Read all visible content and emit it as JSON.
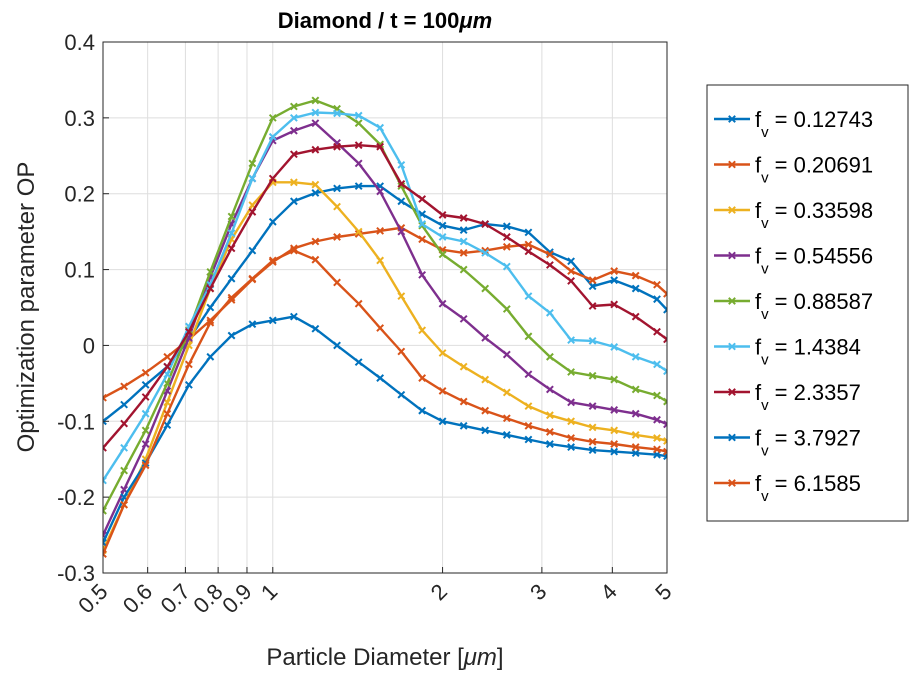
{
  "chart_data": {
    "type": "line",
    "title": "Diamond / t = 100",
    "title_unit": "μm",
    "xlabel": "Particle Diameter  [",
    "xlabel_unit": "μm",
    "xlabel_close": "]",
    "ylabel": "Optimization parameter OP",
    "xscale": "log",
    "xlim": [
      0.5,
      5
    ],
    "ylim": [
      -0.3,
      0.4
    ],
    "xticks": [
      0.5,
      0.6,
      0.7,
      0.8,
      0.9,
      1,
      2,
      3,
      4,
      5
    ],
    "xticklabels": [
      "0.5",
      "0.6",
      "0.7",
      "0.8",
      "0.9",
      "1",
      "2",
      "3",
      "4",
      "5"
    ],
    "yticks": [
      -0.3,
      -0.2,
      -0.1,
      0,
      0.1,
      0.2,
      0.3,
      0.4
    ],
    "yticklabels": [
      "-0.3",
      "-0.2",
      "-0.1",
      "0",
      "0.1",
      "0.2",
      "0.3",
      "0.4"
    ],
    "grid": true,
    "legend_position": "outside-right",
    "marker": "x",
    "x": [
      0.5,
      0.545,
      0.595,
      0.65,
      0.71,
      0.775,
      0.845,
      0.92,
      1.0,
      1.09,
      1.19,
      1.3,
      1.42,
      1.55,
      1.69,
      1.84,
      2.0,
      2.18,
      2.38,
      2.6,
      2.84,
      3.1,
      3.38,
      3.69,
      4.03,
      4.4,
      4.8,
      5.0
    ],
    "series": [
      {
        "name": "0.12743",
        "color": "#0072BD",
        "values": [
          -0.1,
          -0.078,
          -0.052,
          -0.028,
          0.008,
          0.05,
          0.088,
          0.125,
          0.163,
          0.19,
          0.201,
          0.207,
          0.21,
          0.21,
          0.19,
          0.173,
          0.158,
          0.152,
          0.16,
          0.157,
          0.149,
          0.123,
          0.111,
          0.078,
          0.086,
          0.075,
          0.061,
          0.047
        ]
      },
      {
        "name": "0.20691",
        "color": "#D95319",
        "values": [
          -0.069,
          -0.054,
          -0.036,
          -0.015,
          0.008,
          0.033,
          0.06,
          0.087,
          0.11,
          0.128,
          0.137,
          0.143,
          0.147,
          0.151,
          0.155,
          0.14,
          0.126,
          0.122,
          0.125,
          0.13,
          0.133,
          0.12,
          0.098,
          0.086,
          0.098,
          0.092,
          0.08,
          0.068
        ]
      },
      {
        "name": "0.33598",
        "color": "#EDB120",
        "values": [
          -0.27,
          -0.21,
          -0.15,
          -0.075,
          0.0,
          0.075,
          0.14,
          0.185,
          0.215,
          0.215,
          0.212,
          0.183,
          0.15,
          0.112,
          0.065,
          0.02,
          -0.01,
          -0.028,
          -0.045,
          -0.062,
          -0.08,
          -0.092,
          -0.1,
          -0.108,
          -0.112,
          -0.118,
          -0.122,
          -0.126
        ]
      },
      {
        "name": "0.54556",
        "color": "#7E2F8E",
        "values": [
          -0.25,
          -0.19,
          -0.13,
          -0.06,
          0.01,
          0.09,
          0.16,
          0.22,
          0.27,
          0.283,
          0.293,
          0.267,
          0.24,
          0.203,
          0.15,
          0.093,
          0.055,
          0.035,
          0.01,
          -0.012,
          -0.038,
          -0.058,
          -0.075,
          -0.08,
          -0.085,
          -0.09,
          -0.098,
          -0.104
        ]
      },
      {
        "name": "0.88587",
        "color": "#77AC30",
        "values": [
          -0.218,
          -0.165,
          -0.112,
          -0.05,
          0.02,
          0.097,
          0.17,
          0.24,
          0.3,
          0.315,
          0.323,
          0.312,
          0.293,
          0.265,
          0.21,
          0.158,
          0.12,
          0.1,
          0.075,
          0.048,
          0.012,
          -0.015,
          -0.035,
          -0.04,
          -0.045,
          -0.058,
          -0.066,
          -0.074
        ]
      },
      {
        "name": "1.4384",
        "color": "#4DBEEE",
        "values": [
          -0.178,
          -0.135,
          -0.09,
          -0.038,
          0.025,
          0.08,
          0.148,
          0.22,
          0.275,
          0.3,
          0.307,
          0.306,
          0.303,
          0.287,
          0.238,
          0.16,
          0.143,
          0.137,
          0.122,
          0.104,
          0.065,
          0.043,
          0.007,
          0.006,
          -0.002,
          -0.015,
          -0.025,
          -0.034
        ]
      },
      {
        "name": "2.3357",
        "color": "#A2142F",
        "values": [
          -0.135,
          -0.103,
          -0.068,
          -0.028,
          0.018,
          0.075,
          0.128,
          0.176,
          0.22,
          0.252,
          0.258,
          0.262,
          0.264,
          0.262,
          0.213,
          0.193,
          0.172,
          0.168,
          0.16,
          0.143,
          0.124,
          0.106,
          0.085,
          0.052,
          0.054,
          0.038,
          0.018,
          0.008
        ]
      },
      {
        "name": "3.7927",
        "color": "#0072BD",
        "values": [
          -0.26,
          -0.2,
          -0.155,
          -0.105,
          -0.052,
          -0.015,
          0.013,
          0.028,
          0.033,
          0.038,
          0.022,
          0.0,
          -0.022,
          -0.043,
          -0.065,
          -0.086,
          -0.1,
          -0.106,
          -0.112,
          -0.118,
          -0.124,
          -0.13,
          -0.134,
          -0.138,
          -0.14,
          -0.142,
          -0.144,
          -0.146
        ]
      },
      {
        "name": "6.1585",
        "color": "#D95319",
        "values": [
          -0.275,
          -0.21,
          -0.158,
          -0.09,
          -0.025,
          0.03,
          0.063,
          0.088,
          0.112,
          0.125,
          0.113,
          0.083,
          0.055,
          0.023,
          -0.008,
          -0.043,
          -0.06,
          -0.074,
          -0.086,
          -0.096,
          -0.106,
          -0.114,
          -0.122,
          -0.127,
          -0.13,
          -0.134,
          -0.137,
          -0.14
        ]
      }
    ],
    "legend_prefix": "f",
    "legend_subscript": "v",
    "legend_equals": "= "
  }
}
